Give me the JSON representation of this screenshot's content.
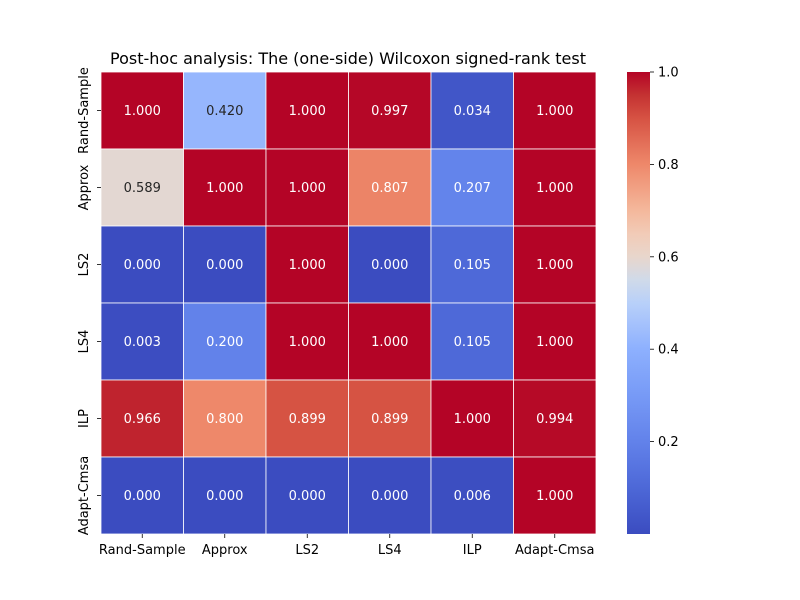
{
  "chart_data": {
    "type": "heatmap",
    "title": "Post-hoc analysis: The (one-side) Wilcoxon signed-rank test",
    "xlabel": "",
    "ylabel": "",
    "x_categories": [
      "Rand-Sample",
      "Approx",
      "LS2",
      "LS4",
      "ILP",
      "Adapt-Cmsa"
    ],
    "y_categories": [
      "Rand-Sample",
      "Approx",
      "LS2",
      "LS4",
      "ILP",
      "Adapt-Cmsa"
    ],
    "values": [
      [
        1.0,
        0.42,
        1.0,
        0.997,
        0.034,
        1.0
      ],
      [
        0.589,
        1.0,
        1.0,
        0.807,
        0.207,
        1.0
      ],
      [
        0.0,
        0.0,
        1.0,
        0.0,
        0.105,
        1.0
      ],
      [
        0.003,
        0.2,
        1.0,
        1.0,
        0.105,
        1.0
      ],
      [
        0.966,
        0.8,
        0.899,
        0.899,
        1.0,
        0.994
      ],
      [
        0.0,
        0.0,
        0.0,
        0.0,
        0.006,
        1.0
      ]
    ],
    "labels": [
      [
        "1.000",
        "0.420",
        "1.000",
        "0.997",
        "0.034",
        "1.000"
      ],
      [
        "0.589",
        "1.000",
        "1.000",
        "0.807",
        "0.207",
        "1.000"
      ],
      [
        "0.000",
        "0.000",
        "1.000",
        "0.000",
        "0.105",
        "1.000"
      ],
      [
        "0.003",
        "0.200",
        "1.000",
        "1.000",
        "0.105",
        "1.000"
      ],
      [
        "0.966",
        "0.800",
        "0.899",
        "0.899",
        "1.000",
        "0.994"
      ],
      [
        "0.000",
        "0.000",
        "0.000",
        "0.000",
        "0.006",
        "1.000"
      ]
    ],
    "colormap": "coolwarm",
    "color_range": [
      0.0,
      1.0
    ],
    "colorbar_ticks": [
      0.2,
      0.4,
      0.6,
      0.8,
      1.0
    ],
    "colorbar_tick_labels": [
      "0.2",
      "0.4",
      "0.6",
      "0.8",
      "1.0"
    ],
    "grid": false,
    "cell_border_color": "#ffffff"
  }
}
